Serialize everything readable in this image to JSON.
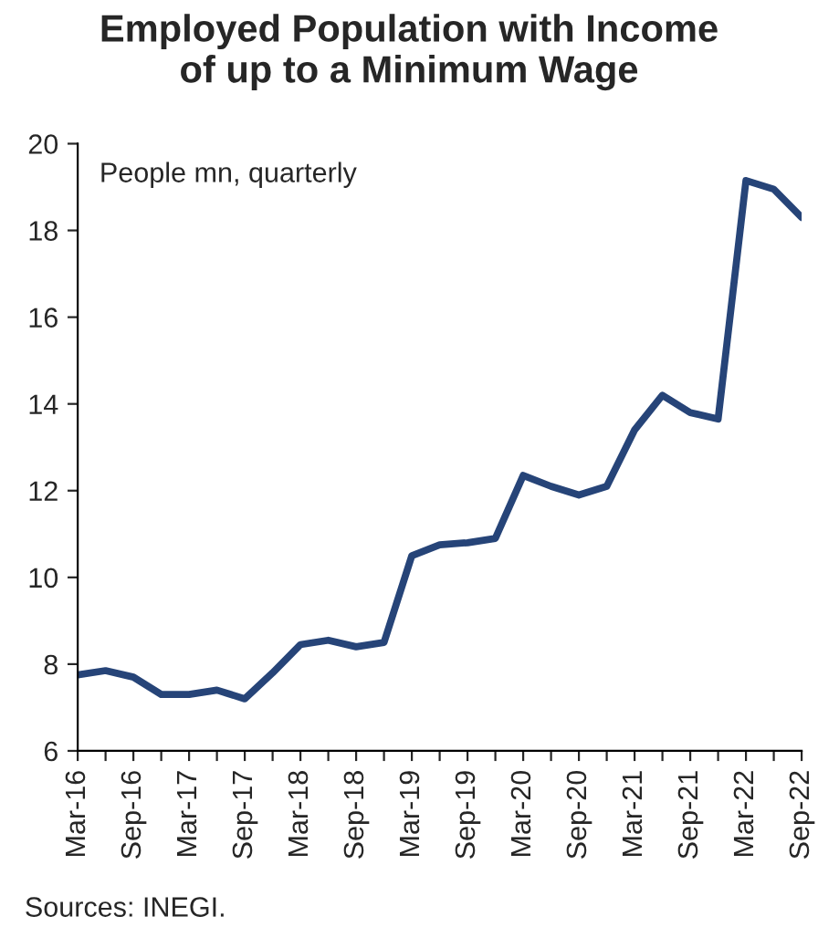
{
  "chart_data": {
    "type": "line",
    "title": "Employed Population with Income\nof up to a Minimum Wage",
    "categories": [
      "Mar-16",
      null,
      "Sep-16",
      null,
      "Mar-17",
      null,
      "Sep-17",
      null,
      "Mar-18",
      null,
      "Sep-18",
      null,
      "Mar-19",
      null,
      "Sep-19",
      null,
      "Mar-20",
      null,
      "Sep-20",
      null,
      "Mar-21",
      null,
      "Sep-21",
      null,
      "Mar-22",
      null,
      "Sep-22"
    ],
    "series": [
      {
        "color": "#264478",
        "values": [
          7.75,
          7.85,
          7.7,
          7.3,
          7.3,
          7.4,
          7.2,
          7.8,
          8.45,
          8.55,
          8.4,
          8.5,
          10.5,
          10.75,
          10.8,
          10.9,
          12.35,
          12.1,
          11.9,
          12.1,
          13.4,
          14.2,
          13.8,
          13.65,
          19.15,
          18.95,
          18.3
        ]
      }
    ],
    "ylim": [
      6,
      20
    ],
    "yticks": [
      6,
      8,
      10,
      12,
      14,
      16,
      18,
      20
    ],
    "grid": false,
    "legend": false,
    "marker": "none",
    "line_style": "solid",
    "annotations": [
      "People mn, quarterly",
      "Sources: INEGI."
    ]
  }
}
